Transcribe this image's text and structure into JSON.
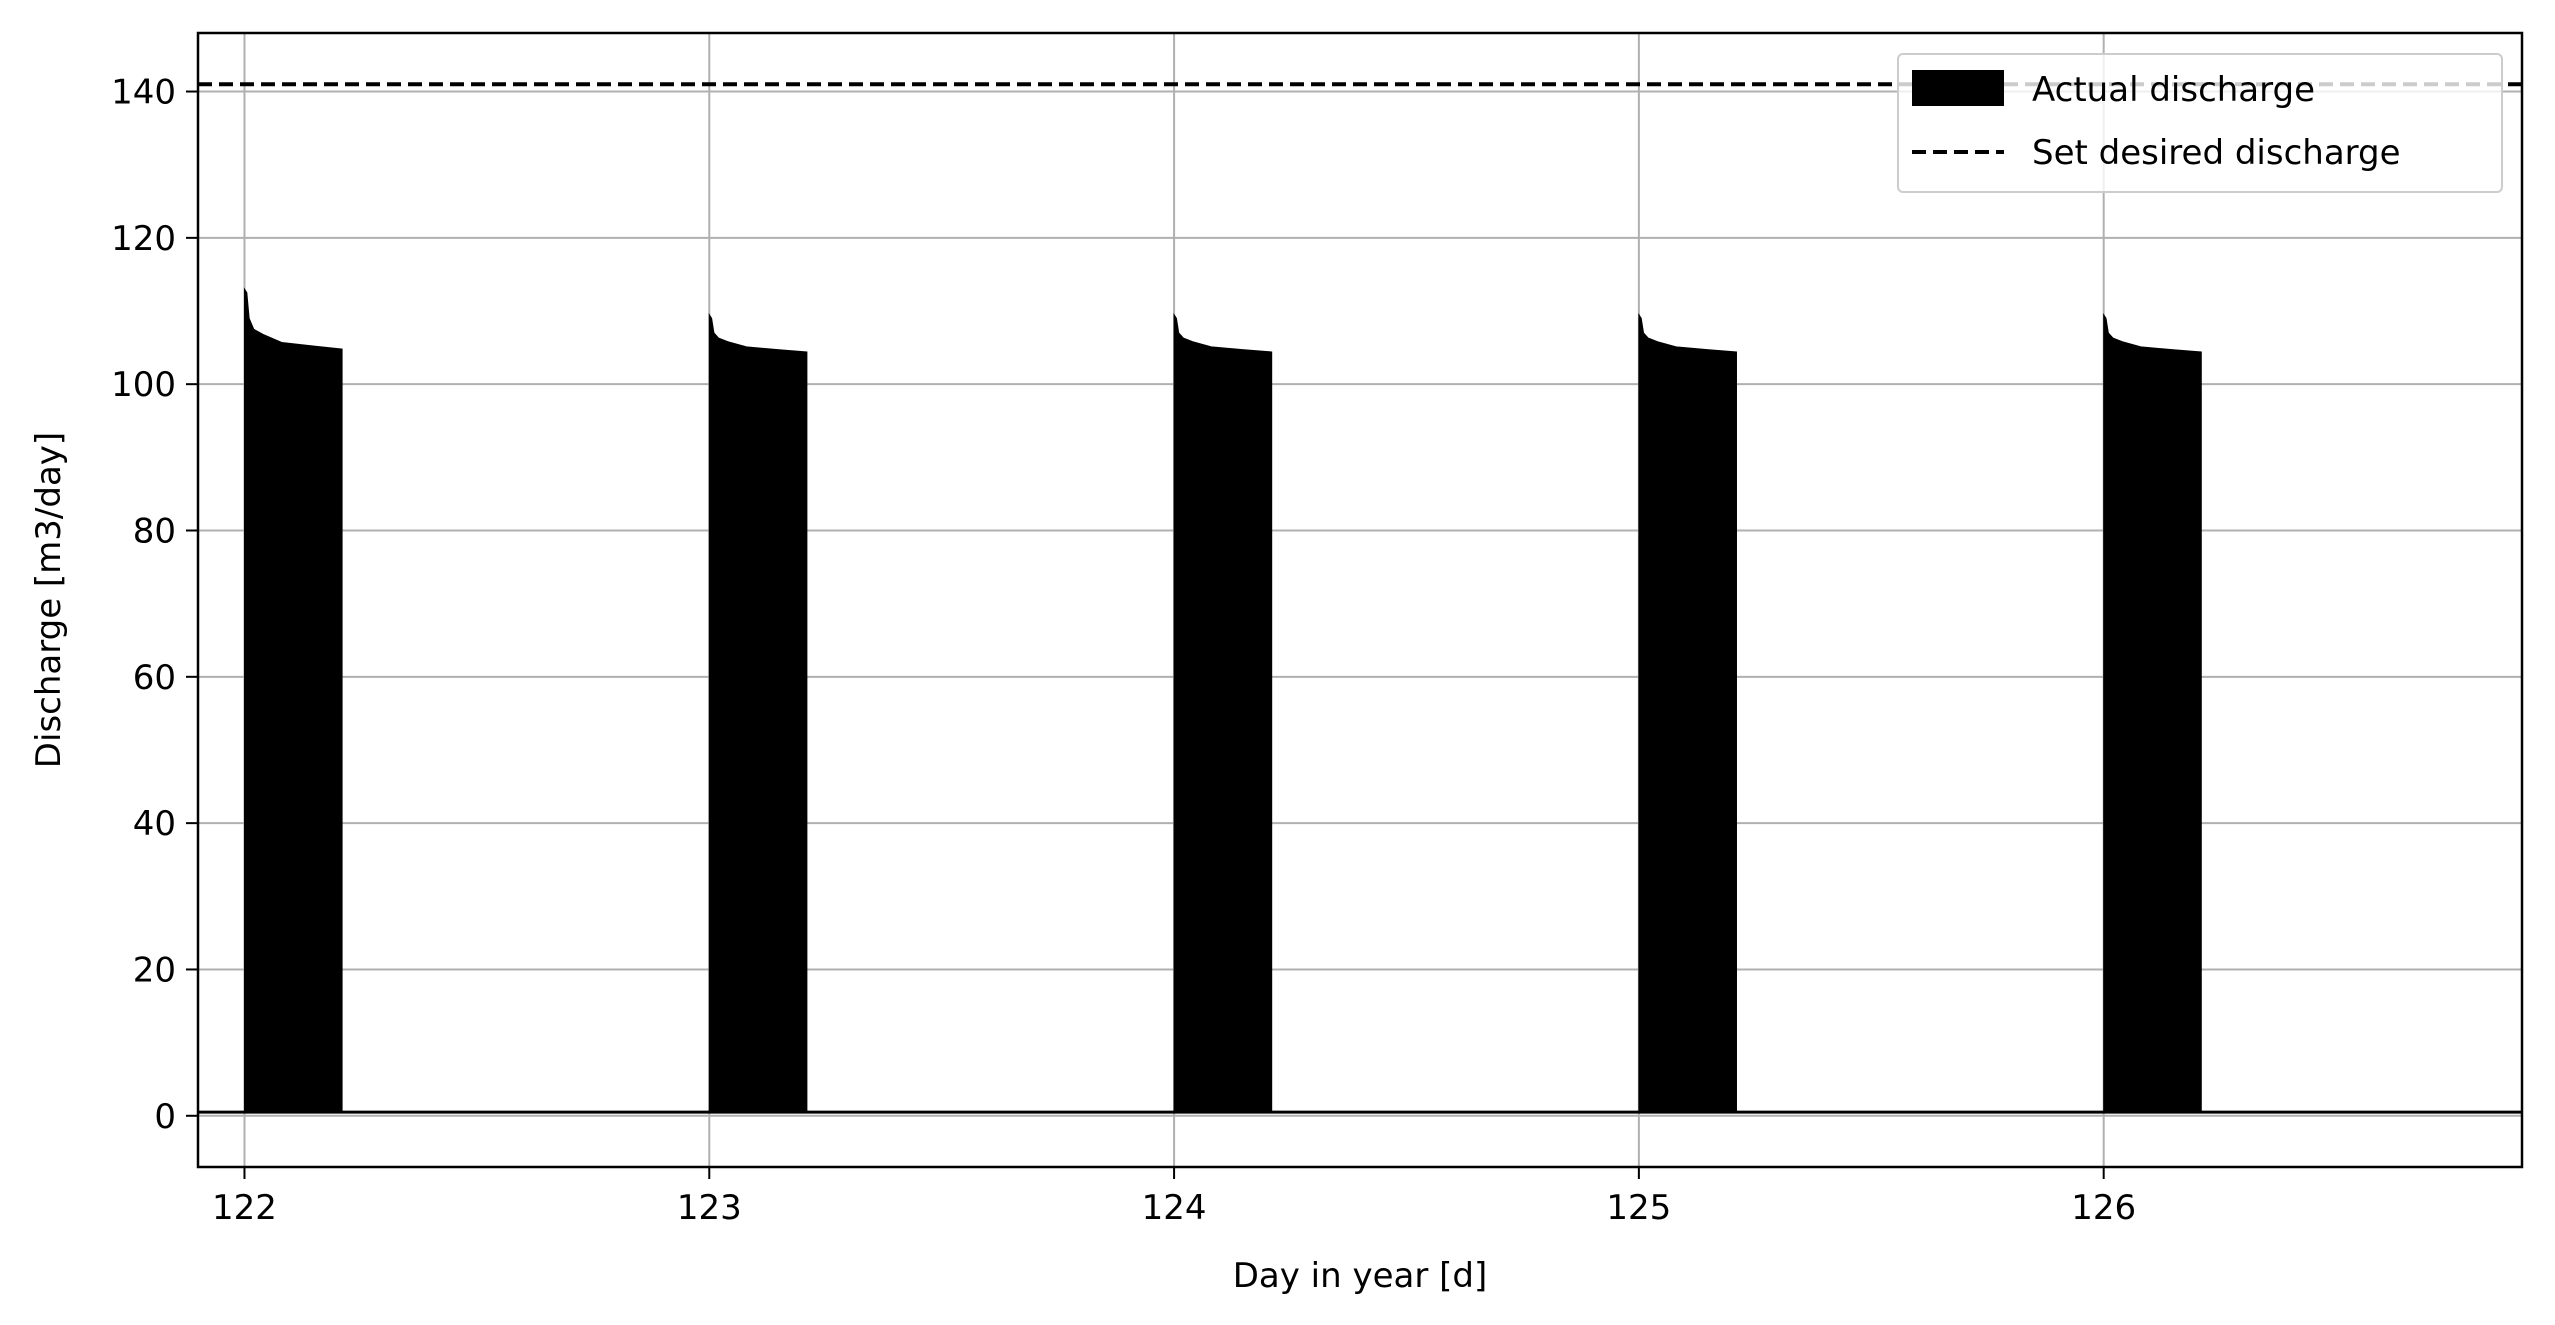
{
  "chart_data": {
    "type": "area",
    "title": "",
    "xlabel": "Day in year [d]",
    "ylabel": "Discharge [m3/day]",
    "xlim": [
      121.9,
      126.9
    ],
    "ylim": [
      -7,
      148
    ],
    "x_ticks": [
      122,
      123,
      124,
      125,
      126
    ],
    "y_ticks": [
      0,
      20,
      40,
      60,
      80,
      100,
      120,
      140
    ],
    "grid": true,
    "legend_position": "top-right",
    "baseline_value": 0.5,
    "series": [
      {
        "name": "Actual discharge",
        "style": "filled",
        "color": "#000000",
        "pulses": [
          {
            "start": 122.0,
            "end": 122.21,
            "points": [
              [
                122.0,
                113.0
              ],
              [
                122.005,
                112.5
              ],
              [
                122.01,
                109.0
              ],
              [
                122.02,
                107.5
              ],
              [
                122.04,
                106.8
              ],
              [
                122.08,
                105.7
              ],
              [
                122.15,
                105.2
              ],
              [
                122.21,
                104.8
              ]
            ]
          },
          {
            "start": 123.0,
            "end": 123.21,
            "points": [
              [
                123.0,
                109.5
              ],
              [
                123.005,
                109.0
              ],
              [
                123.01,
                107.0
              ],
              [
                123.02,
                106.3
              ],
              [
                123.04,
                105.8
              ],
              [
                123.08,
                105.1
              ],
              [
                123.15,
                104.7
              ],
              [
                123.21,
                104.4
              ]
            ]
          },
          {
            "start": 124.0,
            "end": 124.21,
            "points": [
              [
                124.0,
                109.5
              ],
              [
                124.005,
                109.0
              ],
              [
                124.01,
                107.0
              ],
              [
                124.02,
                106.3
              ],
              [
                124.04,
                105.8
              ],
              [
                124.08,
                105.1
              ],
              [
                124.15,
                104.7
              ],
              [
                124.21,
                104.4
              ]
            ]
          },
          {
            "start": 125.0,
            "end": 125.21,
            "points": [
              [
                125.0,
                109.5
              ],
              [
                125.005,
                109.0
              ],
              [
                125.01,
                107.0
              ],
              [
                125.02,
                106.3
              ],
              [
                125.04,
                105.8
              ],
              [
                125.08,
                105.1
              ],
              [
                125.15,
                104.7
              ],
              [
                125.21,
                104.4
              ]
            ]
          },
          {
            "start": 126.0,
            "end": 126.21,
            "points": [
              [
                126.0,
                109.5
              ],
              [
                126.005,
                109.0
              ],
              [
                126.01,
                107.0
              ],
              [
                126.02,
                106.3
              ],
              [
                126.04,
                105.8
              ],
              [
                126.08,
                105.1
              ],
              [
                126.15,
                104.7
              ],
              [
                126.21,
                104.4
              ]
            ]
          }
        ]
      },
      {
        "name": "Set desired discharge",
        "style": "dashed",
        "color": "#000000",
        "value": 141
      }
    ]
  }
}
